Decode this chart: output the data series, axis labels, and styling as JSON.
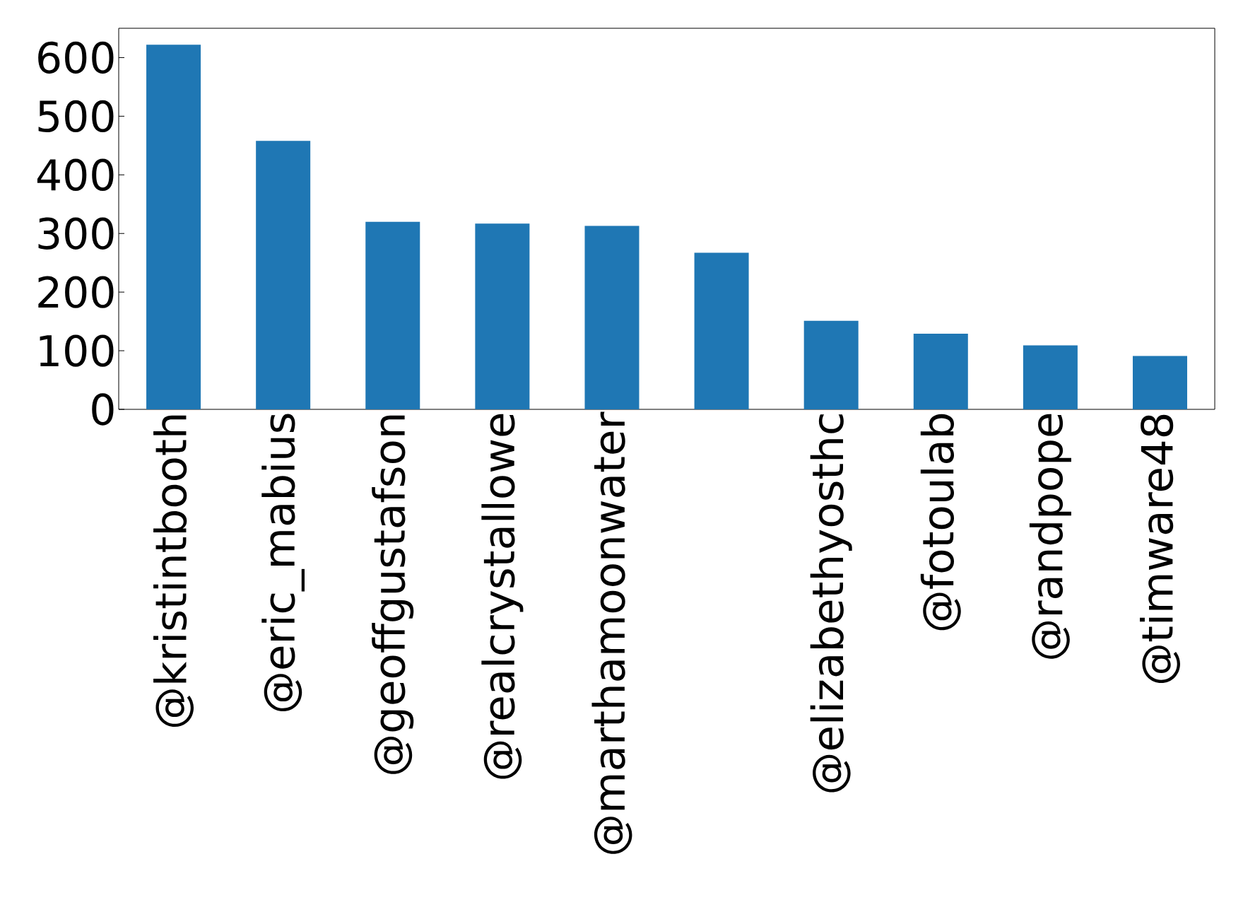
{
  "chart_data": {
    "type": "bar",
    "categories": [
      "@kristintbooth",
      "@eric_mabius",
      "@geoffgustafson",
      "@realcrystallowe",
      "@marthamoonwater",
      null,
      "@elizabethyosthc",
      "@fotoulab",
      "@randpope",
      "@timware48"
    ],
    "values": [
      622,
      458,
      320,
      317,
      313,
      267,
      151,
      129,
      109,
      91
    ],
    "color": "#1f77b4",
    "ylim": [
      0,
      650
    ],
    "yticks": [
      0,
      100,
      200,
      300,
      400,
      500,
      600
    ],
    "grid": false
  }
}
